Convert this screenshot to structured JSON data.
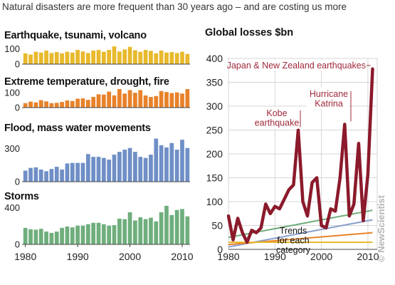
{
  "headline": "Natural disasters are more frequent than 30 years ago – and are costing us more",
  "brand": "© NewScientist",
  "colors": {
    "geo": "#e8b92c",
    "temp": "#e8822a",
    "flood": "#6f8fc6",
    "storm": "#6fae7c",
    "losses": "#8b1a2b",
    "annotation": "#a0293a"
  },
  "chart_data": [
    {
      "type": "bar",
      "title": "Earthquake, tsunami, volcano",
      "x": [
        1980,
        1981,
        1982,
        1983,
        1984,
        1985,
        1986,
        1987,
        1988,
        1989,
        1990,
        1991,
        1992,
        1993,
        1994,
        1995,
        1996,
        1997,
        1998,
        1999,
        2000,
        2001,
        2002,
        2003,
        2004,
        2005,
        2006,
        2007,
        2008,
        2009,
        2010,
        2011
      ],
      "values": [
        70,
        62,
        80,
        75,
        88,
        72,
        78,
        70,
        80,
        75,
        92,
        82,
        72,
        88,
        92,
        80,
        92,
        115,
        82,
        95,
        112,
        90,
        80,
        92,
        86,
        70,
        88,
        75,
        78,
        72,
        80,
        66
      ],
      "ylim": [
        0,
        120
      ],
      "yticks": [
        0,
        100
      ],
      "color_key": "geo"
    },
    {
      "type": "bar",
      "title": "Extreme temperature, drought, fire",
      "x": [
        1980,
        1981,
        1982,
        1983,
        1984,
        1985,
        1986,
        1987,
        1988,
        1989,
        1990,
        1991,
        1992,
        1993,
        1994,
        1995,
        1996,
        1997,
        1998,
        1999,
        2000,
        2001,
        2002,
        2003,
        2004,
        2005,
        2006,
        2007,
        2008,
        2009,
        2010,
        2011
      ],
      "values": [
        30,
        40,
        35,
        50,
        42,
        30,
        32,
        38,
        48,
        45,
        60,
        62,
        52,
        72,
        90,
        88,
        108,
        82,
        125,
        95,
        118,
        100,
        118,
        82,
        72,
        78,
        112,
        105,
        98,
        102,
        95,
        125
      ],
      "ylim": [
        0,
        130
      ],
      "yticks": [
        0,
        100
      ],
      "color_key": "temp"
    },
    {
      "type": "bar",
      "title": "Flood, mass water movements",
      "x": [
        1980,
        1981,
        1982,
        1983,
        1984,
        1985,
        1986,
        1987,
        1988,
        1989,
        1990,
        1991,
        1992,
        1993,
        1994,
        1995,
        1996,
        1997,
        1998,
        1999,
        2000,
        2001,
        2002,
        2003,
        2004,
        2005,
        2006,
        2007,
        2008,
        2009,
        2010,
        2011
      ],
      "values": [
        100,
        125,
        130,
        110,
        95,
        115,
        135,
        110,
        165,
        170,
        170,
        170,
        250,
        225,
        225,
        215,
        200,
        245,
        270,
        290,
        305,
        270,
        225,
        215,
        245,
        390,
        330,
        310,
        350,
        290,
        380,
        305
      ],
      "ylim": [
        0,
        400
      ],
      "yticks": [
        0,
        300
      ],
      "color_key": "flood"
    },
    {
      "type": "bar",
      "title": "Storms",
      "x": [
        1980,
        1981,
        1982,
        1983,
        1984,
        1985,
        1986,
        1987,
        1988,
        1989,
        1990,
        1991,
        1992,
        1993,
        1994,
        1995,
        1996,
        1997,
        1998,
        1999,
        2000,
        2001,
        2002,
        2003,
        2004,
        2005,
        2006,
        2007,
        2008,
        2009,
        2010,
        2011
      ],
      "values": [
        180,
        165,
        160,
        170,
        140,
        125,
        140,
        180,
        195,
        185,
        205,
        205,
        220,
        235,
        235,
        220,
        205,
        210,
        280,
        275,
        350,
        260,
        295,
        275,
        290,
        250,
        350,
        420,
        320,
        375,
        385,
        305
      ],
      "ylim": [
        0,
        450
      ],
      "yticks": [
        0,
        400
      ],
      "color_key": "storm"
    },
    {
      "type": "line",
      "title": "Global losses $bn",
      "xlim": [
        1980,
        2012
      ],
      "ylim": [
        0,
        400
      ],
      "xticks": [
        1980,
        1990,
        2000,
        2010
      ],
      "yticks": [
        0,
        50,
        100,
        150,
        200,
        250,
        300,
        350,
        400
      ],
      "grid": true,
      "series": [
        {
          "color_key": "losses",
          "x": [
            1980,
            1981,
            1982,
            1983,
            1984,
            1985,
            1986,
            1987,
            1988,
            1989,
            1990,
            1991,
            1992,
            1993,
            1994,
            1995,
            1996,
            1997,
            1998,
            1999,
            2000,
            2001,
            2002,
            2003,
            2004,
            2005,
            2006,
            2007,
            2008,
            2009,
            2010,
            2011
          ],
          "values": [
            70,
            20,
            65,
            35,
            15,
            40,
            35,
            45,
            95,
            75,
            90,
            85,
            105,
            125,
            135,
            250,
            100,
            70,
            140,
            150,
            50,
            45,
            85,
            80,
            150,
            262,
            70,
            95,
            222,
            60,
            157,
            378
          ]
        }
      ],
      "trend_series": [
        {
          "color": "#8aa0cc",
          "x": [
            1980,
            2011
          ],
          "values": [
            5,
            62
          ]
        },
        {
          "color": "#6fae7c",
          "x": [
            1980,
            2011
          ],
          "values": [
            25,
            82
          ]
        },
        {
          "color": "#e8822a",
          "x": [
            1980,
            2011
          ],
          "values": [
            10,
            35
          ]
        },
        {
          "color": "#e8b92c",
          "x": [
            1980,
            2011
          ],
          "values": [
            15,
            15
          ]
        }
      ],
      "annotations": [
        {
          "text": "Japan & New Zealand earthquakes",
          "x": 2011,
          "y": 378
        },
        {
          "text": "Hurricane\nKatrina",
          "x": 2005,
          "y": 262
        },
        {
          "text": "Kobe\nearthquake",
          "x": 1995,
          "y": 250
        },
        {
          "text": "Trends\nfor each\ncategory",
          "x": 2000,
          "y": 70
        }
      ]
    }
  ]
}
